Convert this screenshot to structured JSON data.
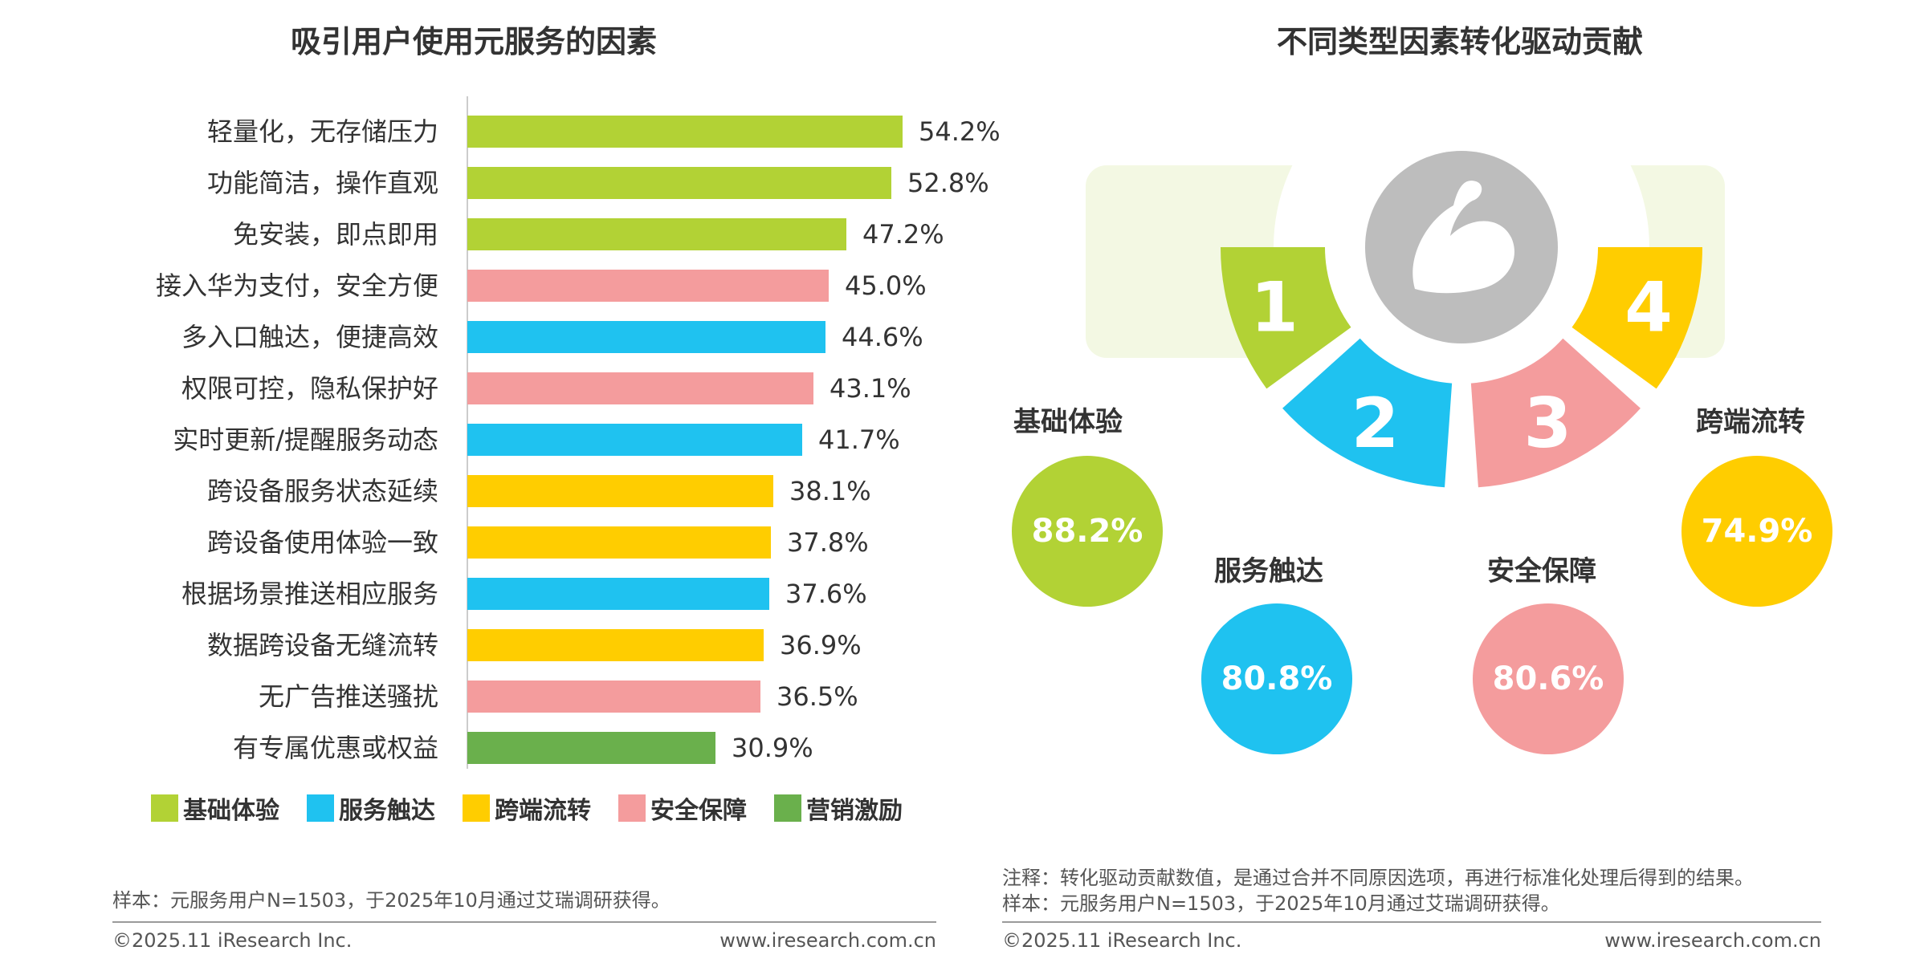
{
  "left": {
    "title": "吸引用户使用元服务的因素",
    "legend": [
      {
        "key": "basic",
        "label": "基础体验",
        "color": "#b2d235"
      },
      {
        "key": "service",
        "label": "服务触达",
        "color": "#1fc2f0"
      },
      {
        "key": "cross",
        "label": "跨端流转",
        "color": "#ffcd00"
      },
      {
        "key": "safety",
        "label": "安全保障",
        "color": "#f49c9d"
      },
      {
        "key": "marketing",
        "label": "营销激励",
        "color": "#6ab04c"
      }
    ],
    "note": "样本：元服务用户N=1503，于2025年10月通过艾瑞调研获得。",
    "copyright": "©2025.11 iResearch Inc.",
    "website": "www.iresearch.com.cn"
  },
  "chart_data": [
    {
      "type": "bar",
      "orientation": "horizontal",
      "title": "吸引用户使用元服务的因素",
      "xlabel": "",
      "ylabel": "",
      "xlim": [
        0,
        60
      ],
      "unit": "%",
      "categories": [
        "轻量化，无存储压力",
        "功能简洁，操作直观",
        "免安装，即点即用",
        "接入华为支付，安全方便",
        "多入口触达，便捷高效",
        "权限可控，隐私保护好",
        "实时更新/提醒服务动态",
        "跨设备服务状态延续",
        "跨设备使用体验一致",
        "根据场景推送相应服务",
        "数据跨设备无缝流转",
        "无广告推送骚扰",
        "有专属优惠或权益"
      ],
      "values": [
        54.2,
        52.8,
        47.2,
        45.0,
        44.6,
        43.1,
        41.7,
        38.1,
        37.8,
        37.6,
        36.9,
        36.5,
        30.9
      ],
      "labels": [
        "54.2%",
        "52.8%",
        "47.2%",
        "45.0%",
        "44.6%",
        "43.1%",
        "41.7%",
        "38.1%",
        "37.8%",
        "37.6%",
        "36.9%",
        "36.5%",
        "30.9%"
      ],
      "groups": [
        "basic",
        "basic",
        "basic",
        "safety",
        "service",
        "safety",
        "service",
        "cross",
        "cross",
        "service",
        "cross",
        "safety",
        "marketing"
      ],
      "legend": [
        "基础体验",
        "服务触达",
        "跨端流转",
        "安全保障",
        "营销激励"
      ],
      "legend_position": "bottom"
    },
    {
      "type": "pie",
      "title": "不同类型因素转化驱动贡献",
      "categories": [
        "基础体验",
        "服务触达",
        "安全保障",
        "跨端流转"
      ],
      "numbers": [
        "1",
        "2",
        "3",
        "4"
      ],
      "values": [
        88.2,
        80.8,
        80.6,
        74.9
      ],
      "labels": [
        "88.2%",
        "80.8%",
        "80.6%",
        "74.9%"
      ],
      "colors": [
        "#b2d235",
        "#1fc2f0",
        "#f49c9d",
        "#ffcd00"
      ],
      "unit": "%"
    }
  ],
  "right": {
    "title": "不同类型因素转化驱动贡献",
    "icon": "flexed-arm-icon",
    "colors": {
      "icon_circle": "#bdbdbd",
      "backdrop": "#f3f8e3"
    },
    "note1": "注释：转化驱动贡献数值，是通过合并不同原因选项，再进行标准化处理后得到的结果。",
    "note2": "样本：元服务用户N=1503，于2025年10月通过艾瑞调研获得。",
    "copyright": "©2025.11 iResearch Inc.",
    "website": "www.iresearch.com.cn"
  }
}
